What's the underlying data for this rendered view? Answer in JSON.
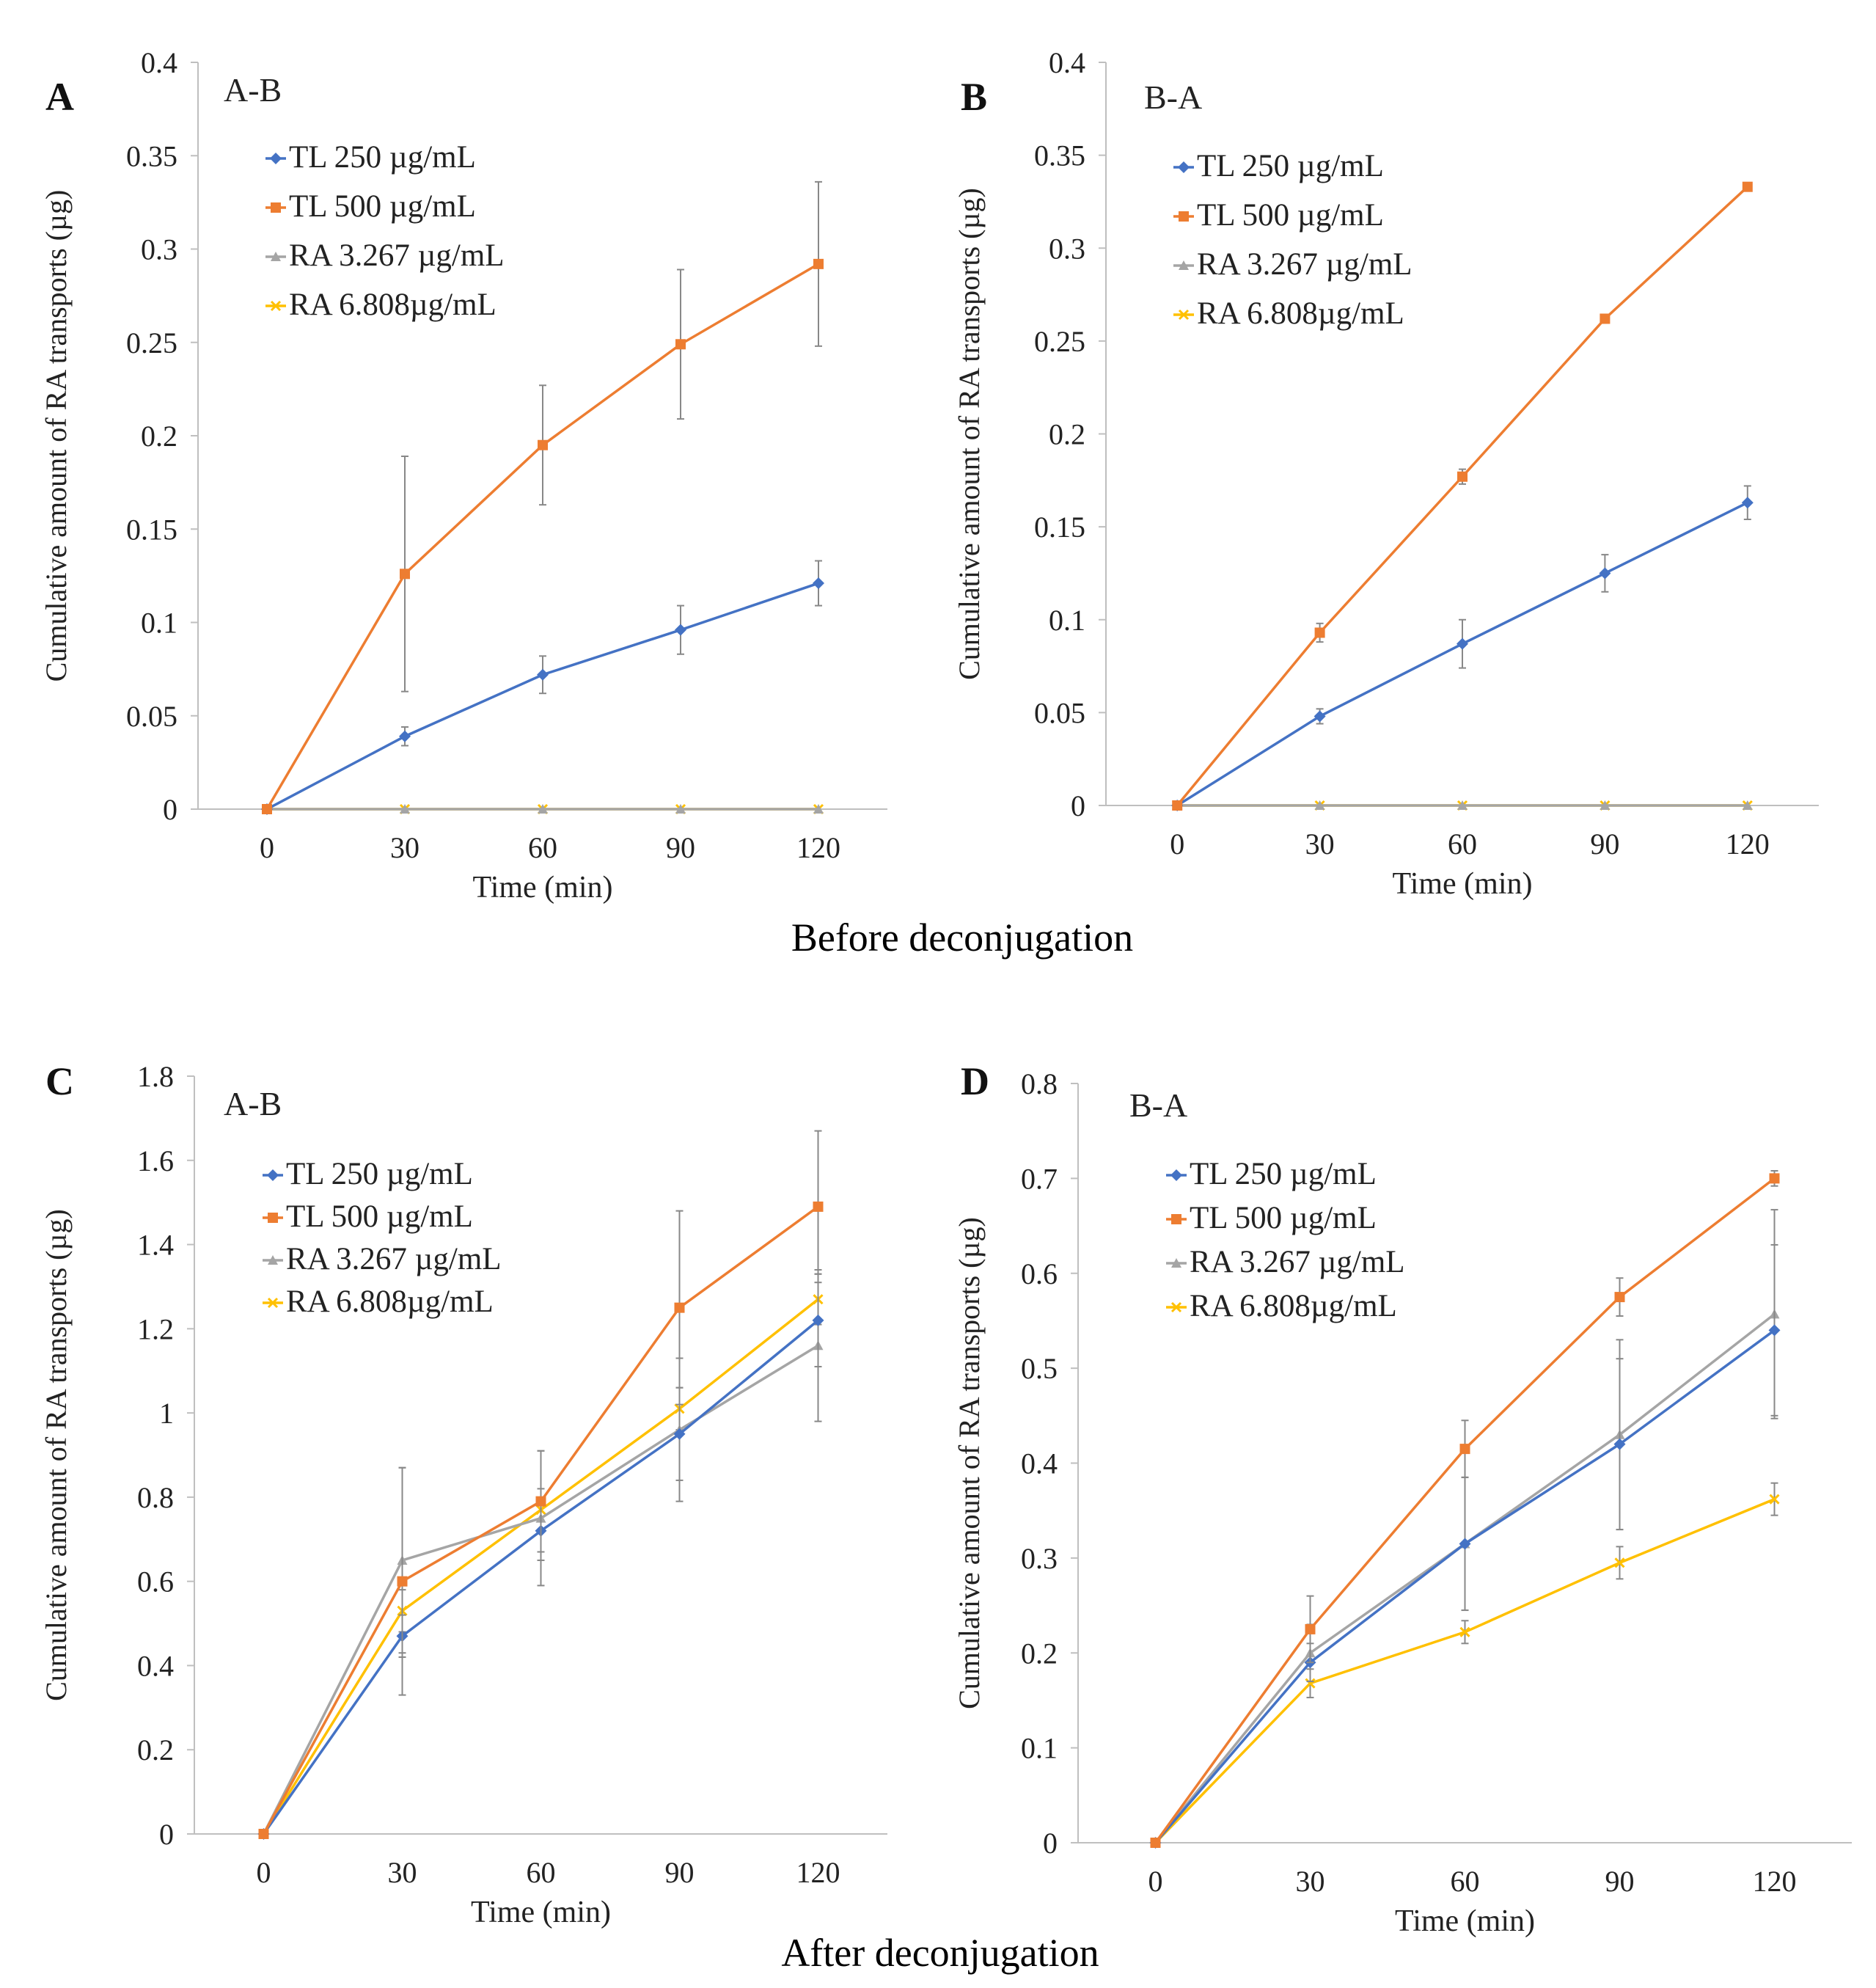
{
  "section_labels": {
    "before": "Before deconjugation",
    "after": "After deconjugation"
  },
  "colors": {
    "TL 250 µg/mL": "#4472c4",
    "TL 500 µg/mL": "#ed7d31",
    "RA 3.267 µg/mL": "#a5a5a5",
    "RA 6.808µg/mL": "#ffc000"
  },
  "chart_data": [
    {
      "type": "line",
      "panel_letter": "A",
      "title": "A-B",
      "xlabel": "Time (min)",
      "ylabel": "Cumulative amount of RA transports (µg)",
      "x": [
        0,
        30,
        60,
        90,
        120
      ],
      "x_ticks": [
        "0",
        "30",
        "60",
        "90",
        "120"
      ],
      "ylim": [
        0,
        0.4
      ],
      "y_ticks": [
        "0",
        "0.05",
        "0.1",
        "0.15",
        "0.2",
        "0.25",
        "0.3",
        "0.35",
        "0.4"
      ],
      "legend_position": "top-left",
      "series": [
        {
          "name": "TL 250 µg/mL",
          "marker": "diamond",
          "values": [
            0,
            0.039,
            0.072,
            0.096,
            0.121
          ],
          "errors": [
            0,
            0.005,
            0.01,
            0.013,
            0.012
          ]
        },
        {
          "name": "TL 500 µg/mL",
          "marker": "square",
          "values": [
            0,
            0.126,
            0.195,
            0.249,
            0.292
          ],
          "errors": [
            0,
            0.063,
            0.032,
            0.04,
            0.044
          ]
        },
        {
          "name": "RA 3.267 µg/mL",
          "marker": "triangle",
          "values": [
            0,
            0,
            0,
            0,
            0
          ],
          "errors": [
            0,
            0,
            0,
            0,
            0
          ]
        },
        {
          "name": "RA 6.808µg/mL",
          "marker": "x",
          "values": [
            0,
            0,
            0,
            0,
            0
          ],
          "errors": [
            0,
            0,
            0,
            0,
            0
          ]
        }
      ]
    },
    {
      "type": "line",
      "panel_letter": "B",
      "title": "B-A",
      "xlabel": "Time (min)",
      "ylabel": "Cumulative amount of RA transports (µg)",
      "x": [
        0,
        30,
        60,
        90,
        120
      ],
      "x_ticks": [
        "0",
        "30",
        "60",
        "90",
        "120"
      ],
      "ylim": [
        0,
        0.4
      ],
      "y_ticks": [
        "0",
        "0.05",
        "0.1",
        "0.15",
        "0.2",
        "0.25",
        "0.3",
        "0.35",
        "0.4"
      ],
      "legend_position": "top-left",
      "series": [
        {
          "name": "TL 250 µg/mL",
          "marker": "diamond",
          "values": [
            0,
            0.048,
            0.087,
            0.125,
            0.163
          ],
          "errors": [
            0,
            0.004,
            0.013,
            0.01,
            0.009
          ]
        },
        {
          "name": "TL 500 µg/mL",
          "marker": "square",
          "values": [
            0,
            0.093,
            0.177,
            0.262,
            0.333
          ],
          "errors": [
            0,
            0.005,
            0.004,
            0.002,
            0.002
          ]
        },
        {
          "name": "RA 3.267 µg/mL",
          "marker": "triangle",
          "values": [
            0,
            0,
            0,
            0,
            0
          ],
          "errors": [
            0,
            0,
            0,
            0,
            0
          ]
        },
        {
          "name": "RA 6.808µg/mL",
          "marker": "x",
          "values": [
            0,
            0,
            0,
            0,
            0
          ],
          "errors": [
            0,
            0,
            0,
            0,
            0
          ]
        }
      ]
    },
    {
      "type": "line",
      "panel_letter": "C",
      "title": "A-B",
      "xlabel": "Time (min)",
      "ylabel": "Cumulative amount of RA transports (µg)",
      "x": [
        0,
        30,
        60,
        90,
        120
      ],
      "x_ticks": [
        "0",
        "30",
        "60",
        "90",
        "120"
      ],
      "ylim": [
        0,
        1.8
      ],
      "y_ticks": [
        "0",
        "0.2",
        "0.4",
        "0.6",
        "0.8",
        "1",
        "1.2",
        "1.4",
        "1.6",
        "1.8"
      ],
      "legend_position": "top-left",
      "series": [
        {
          "name": "TL 250 µg/mL",
          "marker": "diamond",
          "values": [
            0,
            0.47,
            0.72,
            0.95,
            1.22
          ],
          "errors": [
            0,
            0.05,
            0.07,
            0.11,
            0.11
          ]
        },
        {
          "name": "TL 500 µg/mL",
          "marker": "square",
          "values": [
            0,
            0.6,
            0.79,
            1.25,
            1.49
          ],
          "errors": [
            0,
            0.27,
            0.12,
            0.23,
            0.18
          ]
        },
        {
          "name": "RA 3.267 µg/mL",
          "marker": "triangle",
          "values": [
            0,
            0.65,
            0.75,
            0.96,
            1.16
          ],
          "errors": [
            0,
            0.22,
            0.16,
            0.17,
            0.18
          ]
        },
        {
          "name": "RA 6.808µg/mL",
          "marker": "x",
          "values": [
            0,
            0.53,
            0.77,
            1.01,
            1.27
          ],
          "errors": [
            0,
            0.05,
            0.05,
            0.05,
            0.06
          ]
        }
      ]
    },
    {
      "type": "line",
      "panel_letter": "D",
      "title": "B-A",
      "xlabel": "Time (min)",
      "ylabel": "Cumulative amount of RA transports (µg)",
      "x": [
        0,
        30,
        60,
        90,
        120
      ],
      "x_ticks": [
        "0",
        "30",
        "60",
        "90",
        "120"
      ],
      "ylim": [
        0,
        0.8
      ],
      "y_ticks": [
        "0",
        "0.1",
        "0.2",
        "0.3",
        "0.4",
        "0.5",
        "0.6",
        "0.7",
        "0.8"
      ],
      "legend_position": "top-left",
      "series": [
        {
          "name": "TL 250 µg/mL",
          "marker": "diamond",
          "values": [
            0,
            0.19,
            0.315,
            0.42,
            0.54
          ],
          "errors": [
            0,
            0.02,
            0.07,
            0.09,
            0.09
          ]
        },
        {
          "name": "TL 500 µg/mL",
          "marker": "square",
          "values": [
            0,
            0.225,
            0.415,
            0.575,
            0.7
          ],
          "errors": [
            0,
            0.035,
            0.03,
            0.02,
            0.008
          ]
        },
        {
          "name": "RA 3.267 µg/mL",
          "marker": "triangle",
          "values": [
            0,
            0.2,
            0.315,
            0.43,
            0.557
          ],
          "errors": [
            0,
            0.03,
            0.07,
            0.1,
            0.11
          ]
        },
        {
          "name": "RA 6.808µg/mL",
          "marker": "x",
          "values": [
            0,
            0.168,
            0.222,
            0.295,
            0.362
          ],
          "errors": [
            0,
            0.015,
            0.012,
            0.017,
            0.017
          ]
        }
      ]
    }
  ]
}
